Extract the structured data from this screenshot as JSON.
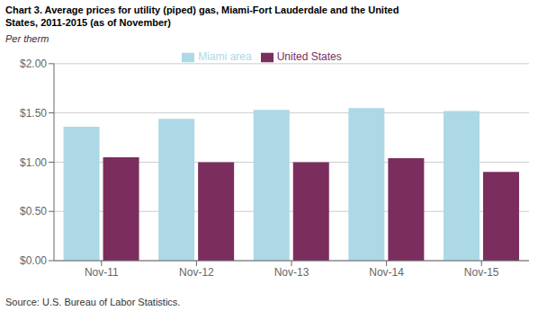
{
  "chart_data": {
    "type": "bar",
    "title": "Chart 3. Average prices for utility (piped) gas, Miami-Fort Lauderdale and the United\nStates, 2011-2015 (as of November)",
    "ylabel": "Per therm",
    "annotations": [
      "Source: U.S. Bureau of Labor Statistics."
    ],
    "categories": [
      "Nov-11",
      "Nov-12",
      "Nov-13",
      "Nov-14",
      "Nov-15"
    ],
    "series": [
      {
        "name": "Miami area",
        "color": "#ADD8E6",
        "values": [
          1.36,
          1.44,
          1.53,
          1.55,
          1.52
        ]
      },
      {
        "name": "United States",
        "color": "#7B2D5E",
        "values": [
          1.05,
          1.0,
          1.0,
          1.04,
          0.9
        ]
      }
    ],
    "ylim": [
      0.0,
      2.0
    ],
    "yticks": [
      {
        "value": 0.0,
        "label": "$0.00"
      },
      {
        "value": 0.5,
        "label": "$0.50"
      },
      {
        "value": 1.0,
        "label": "$1.00"
      },
      {
        "value": 1.5,
        "label": "$1.50"
      },
      {
        "value": 2.0,
        "label": "$2.00"
      }
    ],
    "grid": true,
    "legend": "top"
  }
}
